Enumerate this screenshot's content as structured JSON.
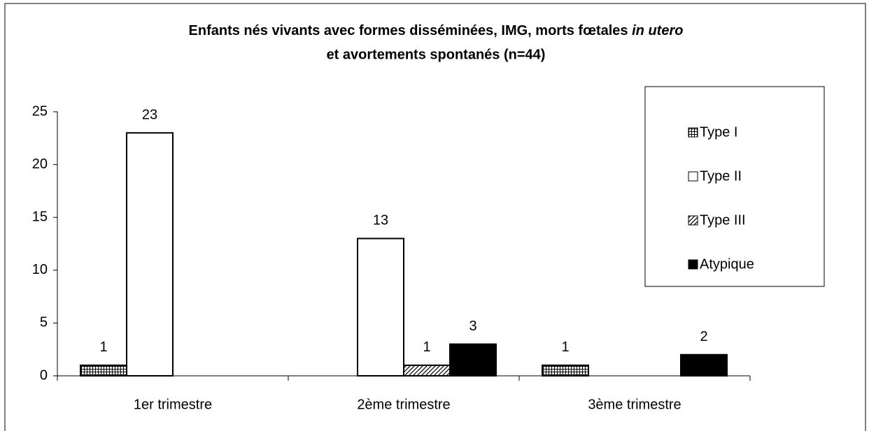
{
  "chart_data": {
    "type": "bar",
    "title": {
      "line1": "Enfants nés vivants avec formes disséminées, IMG, morts fœtales",
      "italic": "in utero",
      "line2": "et avortements spontanés (n=44)"
    },
    "categories": [
      "1er trimestre",
      "2ème trimestre",
      "3ème trimestre"
    ],
    "series": [
      {
        "name": "Type I",
        "color": "#000000",
        "pattern": "grid",
        "values": [
          1,
          null,
          1
        ]
      },
      {
        "name": "Type II",
        "color": "#ffffff",
        "values": [
          23,
          13,
          null
        ]
      },
      {
        "name": "Type III",
        "color": "#000000",
        "pattern": "diagonal",
        "values": [
          null,
          1,
          null
        ]
      },
      {
        "name": "Atypique",
        "color": "#000000",
        "values": [
          null,
          3,
          2
        ]
      }
    ],
    "ylim": [
      0,
      25
    ],
    "yticks": [
      0,
      5,
      10,
      15,
      20,
      25
    ],
    "grid": false,
    "legend": "right"
  }
}
